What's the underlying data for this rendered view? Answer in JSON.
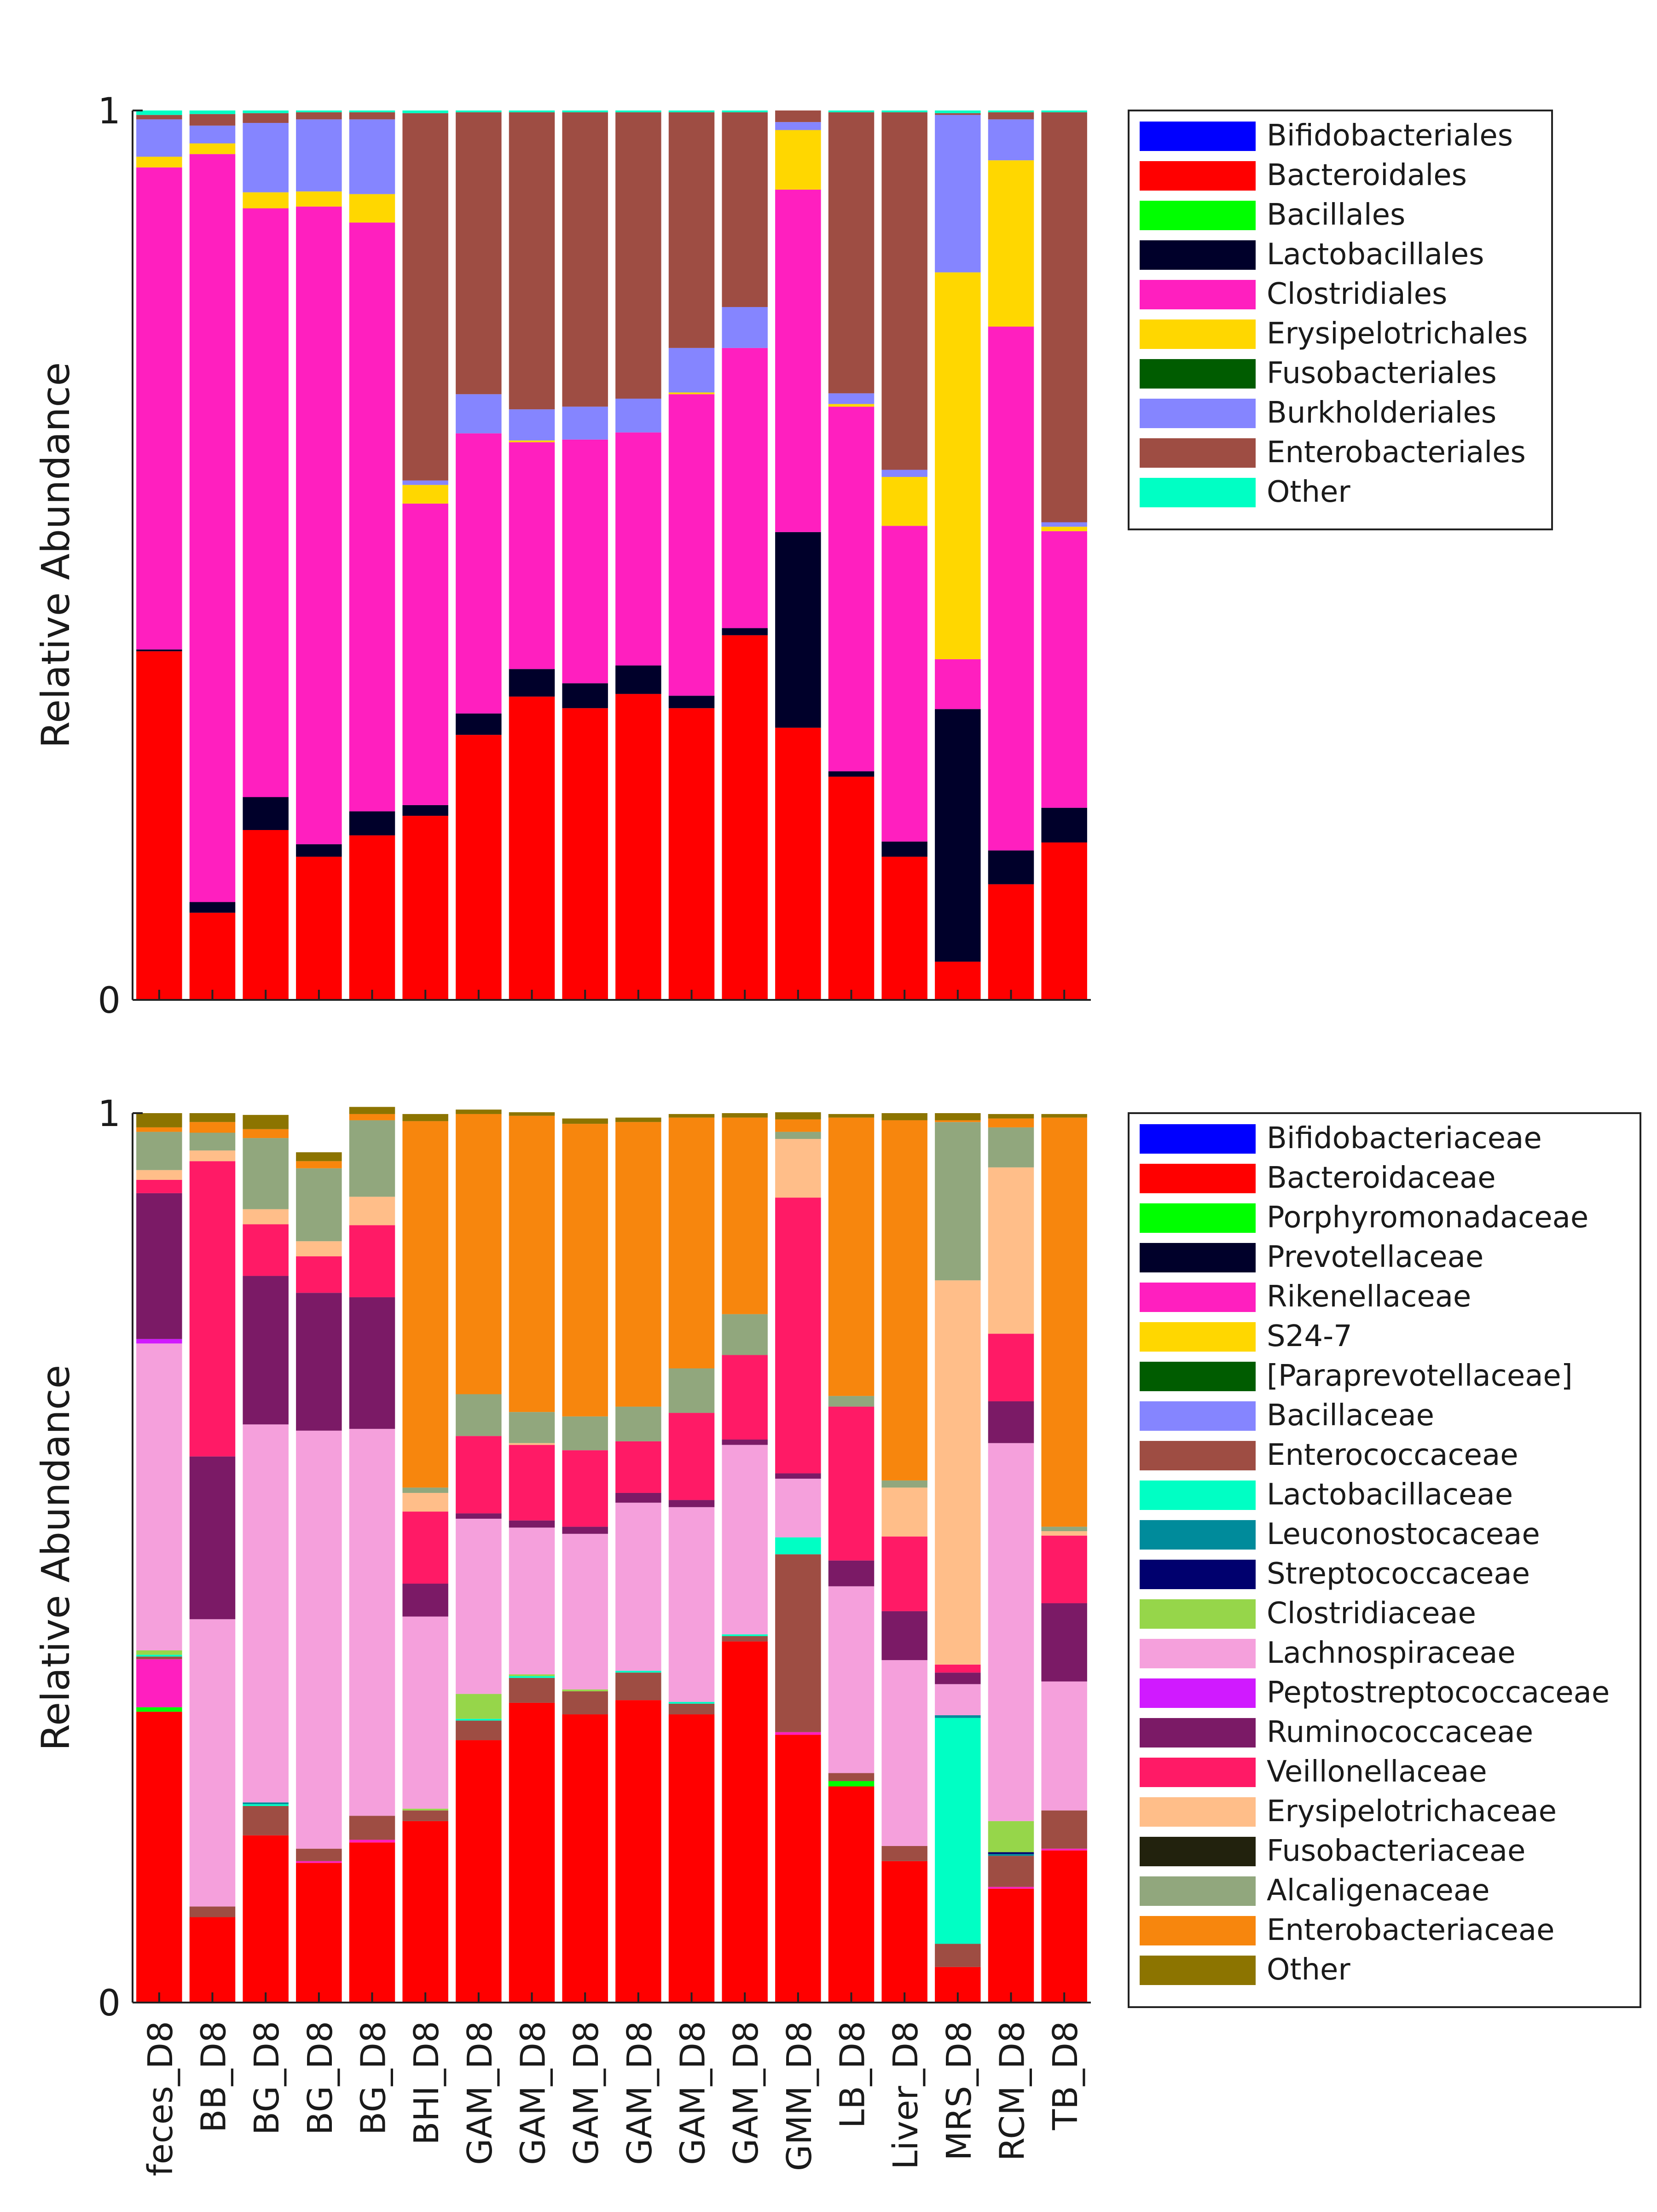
{
  "chart_data": [
    {
      "type": "bar",
      "stacked": true,
      "normalized": true,
      "title": "",
      "xlabel": "",
      "ylabel": "Relative Abundance",
      "ylim": [
        0,
        1
      ],
      "yticks": [
        "0",
        "1"
      ],
      "legend_position": "right",
      "categories": [
        "feces_D8",
        "BB_D8",
        "BG_D8",
        "BG_D8",
        "BG_D8",
        "BHI_D8",
        "GAM_D8",
        "GAM_D8",
        "GAM_D8",
        "GAM_D8",
        "GAM_D8",
        "GAM_D8",
        "GMM_D8",
        "LB_D8",
        "Liver_D8",
        "MRS_D8",
        "RCM_D8",
        "TB_D8"
      ],
      "series": [
        {
          "name": "Bifidobacteriales",
          "color": "#0000ff",
          "values": [
            0,
            0,
            0,
            0,
            0,
            0,
            0,
            0,
            0,
            0,
            0,
            0,
            0,
            0,
            0,
            0,
            0,
            0
          ]
        },
        {
          "name": "Bacteroidales",
          "color": "#ff0000",
          "values": [
            0.392,
            0.098,
            0.191,
            0.161,
            0.185,
            0.207,
            0.298,
            0.341,
            0.328,
            0.344,
            0.328,
            0.41,
            0.306,
            0.251,
            0.161,
            0.043,
            0.13,
            0.177
          ]
        },
        {
          "name": "Bacillales",
          "color": "#00ff00",
          "values": [
            0,
            0,
            0,
            0,
            0,
            0,
            0,
            0,
            0,
            0,
            0,
            0,
            0,
            0,
            0,
            0,
            0,
            0
          ]
        },
        {
          "name": "Lactobacillales",
          "color": "#00002a",
          "values": [
            0.002,
            0.012,
            0.037,
            0.014,
            0.027,
            0.012,
            0.024,
            0.031,
            0.028,
            0.032,
            0.014,
            0.008,
            0.22,
            0.006,
            0.017,
            0.284,
            0.038,
            0.039
          ]
        },
        {
          "name": "Clostridiales",
          "color": "#ff1fbf",
          "values": [
            0.542,
            0.841,
            0.662,
            0.717,
            0.662,
            0.339,
            0.315,
            0.255,
            0.274,
            0.262,
            0.339,
            0.315,
            0.385,
            0.41,
            0.355,
            0.056,
            0.589,
            0.311
          ]
        },
        {
          "name": "Erysipelotrichales",
          "color": "#ffd700",
          "values": [
            0.012,
            0.012,
            0.018,
            0.017,
            0.032,
            0.021,
            0,
            0.002,
            0,
            0,
            0.002,
            0,
            0.067,
            0.003,
            0.055,
            0.435,
            0.187,
            0.005
          ]
        },
        {
          "name": "Fusobacteriales",
          "color": "#005c00",
          "values": [
            0,
            0,
            0,
            0,
            0,
            0,
            0,
            0,
            0,
            0,
            0,
            0,
            0,
            0,
            0,
            0,
            0,
            0
          ]
        },
        {
          "name": "Burkholderiales",
          "color": "#8585ff",
          "values": [
            0.042,
            0.02,
            0.078,
            0.081,
            0.084,
            0.005,
            0.044,
            0.035,
            0.037,
            0.038,
            0.05,
            0.046,
            0.009,
            0.012,
            0.008,
            0.177,
            0.046,
            0.005
          ]
        },
        {
          "name": "Enterobacteriales",
          "color": "#9e4d43",
          "values": [
            0.005,
            0.013,
            0.011,
            0.008,
            0.008,
            0.413,
            0.317,
            0.334,
            0.331,
            0.322,
            0.265,
            0.219,
            0.013,
            0.316,
            0.402,
            0.002,
            0.008,
            0.461
          ]
        },
        {
          "name": "Other",
          "color": "#00ffc4",
          "values": [
            0.005,
            0.004,
            0.003,
            0.002,
            0.002,
            0.003,
            0.002,
            0.002,
            0.002,
            0.002,
            0.002,
            0.002,
            0,
            0.002,
            0.002,
            0.003,
            0.002,
            0.002
          ]
        }
      ]
    },
    {
      "type": "bar",
      "stacked": true,
      "normalized": true,
      "title": "",
      "xlabel": "",
      "ylabel": "Relative Abundance",
      "ylim": [
        0,
        1
      ],
      "yticks": [
        "0",
        "1"
      ],
      "legend_position": "right",
      "categories": [
        "feces_D8",
        "BB_D8",
        "BG_D8",
        "BG_D8",
        "BG_D8",
        "BHI_D8",
        "GAM_D8",
        "GAM_D8",
        "GAM_D8",
        "GAM_D8",
        "GAM_D8",
        "GAM_D8",
        "GMM_D8",
        "LB_D8",
        "Liver_D8",
        "MRS_D8",
        "RCM_D8",
        "TB_D8"
      ],
      "series": [
        {
          "name": "Bifidobacteriaceae",
          "color": "#0000ff",
          "values": [
            0,
            0,
            0,
            0,
            0,
            0,
            0,
            0,
            0,
            0,
            0,
            0,
            0,
            0,
            0,
            0,
            0,
            0
          ]
        },
        {
          "name": "Bacteroidaceae",
          "color": "#ff0000",
          "values": [
            0.327,
            0.096,
            0.188,
            0.157,
            0.18,
            0.204,
            0.295,
            0.337,
            0.324,
            0.34,
            0.324,
            0.406,
            0.301,
            0.243,
            0.159,
            0.04,
            0.128,
            0.171
          ]
        },
        {
          "name": "Porphyromonadaceae",
          "color": "#00ff00",
          "values": [
            0.005,
            0,
            0,
            0,
            0,
            0,
            0,
            0,
            0,
            0,
            0,
            0,
            0,
            0.006,
            0,
            0,
            0,
            0
          ]
        },
        {
          "name": "Prevotellaceae",
          "color": "#00002a",
          "values": [
            0,
            0,
            0,
            0,
            0,
            0,
            0,
            0,
            0,
            0,
            0,
            0,
            0,
            0,
            0,
            0,
            0,
            0
          ]
        },
        {
          "name": "Rikenellaceae",
          "color": "#ff1fbf",
          "values": [
            0.054,
            0,
            0,
            0.002,
            0.003,
            0,
            0,
            0,
            0,
            0,
            0,
            0,
            0.003,
            0,
            0,
            0,
            0.002,
            0.002
          ]
        },
        {
          "name": "S24-7",
          "color": "#ffd700",
          "values": [
            0,
            0,
            0,
            0,
            0,
            0,
            0,
            0,
            0,
            0,
            0,
            0,
            0,
            0,
            0,
            0,
            0,
            0
          ]
        },
        {
          "name": "[Paraprevotellaceae]",
          "color": "#005c00",
          "values": [
            0,
            0,
            0,
            0,
            0,
            0,
            0,
            0,
            0,
            0,
            0,
            0,
            0,
            0,
            0,
            0,
            0,
            0
          ]
        },
        {
          "name": "Bacillaceae",
          "color": "#8585ff",
          "values": [
            0,
            0,
            0,
            0,
            0,
            0,
            0,
            0,
            0,
            0,
            0,
            0,
            0,
            0,
            0,
            0,
            0,
            0
          ]
        },
        {
          "name": "Enterococcaceae",
          "color": "#9e4d43",
          "values": [
            0.003,
            0.012,
            0.033,
            0.014,
            0.027,
            0.012,
            0.022,
            0.028,
            0.026,
            0.031,
            0.012,
            0.006,
            0.2,
            0.009,
            0.017,
            0.026,
            0.035,
            0.043
          ]
        },
        {
          "name": "Lactobacillaceae",
          "color": "#00ffc4",
          "values": [
            0.002,
            0,
            0.002,
            0,
            0,
            0,
            0.002,
            0.002,
            0,
            0.002,
            0.002,
            0.002,
            0.019,
            0,
            0,
            0.254,
            0,
            0
          ]
        },
        {
          "name": "Leuconostocaceae",
          "color": "#008b9b",
          "values": [
            0,
            0,
            0.002,
            0,
            0,
            0,
            0,
            0,
            0,
            0,
            0,
            0,
            0,
            0,
            0,
            0.003,
            0.002,
            0
          ]
        },
        {
          "name": "Streptococcaceae",
          "color": "#00006e",
          "values": [
            0,
            0,
            0,
            0,
            0,
            0,
            0,
            0,
            0,
            0,
            0,
            0,
            0,
            0,
            0,
            0,
            0.002,
            0
          ]
        },
        {
          "name": "Clostridiaceae",
          "color": "#96d64a",
          "values": [
            0.005,
            0,
            0,
            0,
            0,
            0.002,
            0.028,
            0.002,
            0.002,
            0,
            0,
            0,
            0,
            0,
            0,
            0,
            0.035,
            0
          ]
        },
        {
          "name": "Lachnospiraceae",
          "color": "#f5a0dc",
          "values": [
            0.345,
            0.323,
            0.425,
            0.47,
            0.435,
            0.216,
            0.197,
            0.165,
            0.175,
            0.189,
            0.219,
            0.213,
            0.066,
            0.21,
            0.209,
            0.035,
            0.425,
            0.145
          ]
        },
        {
          "name": "Peptostreptococcaceae",
          "color": "#d01aff",
          "values": [
            0.005,
            0,
            0,
            0,
            0,
            0,
            0,
            0,
            0,
            0,
            0,
            0,
            0,
            0,
            0,
            0,
            0,
            0
          ]
        },
        {
          "name": "Ruminococcaceae",
          "color": "#7b1a66",
          "values": [
            0.164,
            0.183,
            0.167,
            0.155,
            0.148,
            0.037,
            0.006,
            0.008,
            0.008,
            0.011,
            0.008,
            0.006,
            0.006,
            0.029,
            0.055,
            0.013,
            0.047,
            0.088
          ]
        },
        {
          "name": "Veillonellaceae",
          "color": "#ff1a66",
          "values": [
            0.015,
            0.332,
            0.058,
            0.041,
            0.081,
            0.081,
            0.087,
            0.085,
            0.086,
            0.058,
            0.098,
            0.095,
            0.31,
            0.173,
            0.084,
            0.009,
            0.076,
            0.076
          ]
        },
        {
          "name": "Erysipelotrichaceae",
          "color": "#ffbe89",
          "values": [
            0.011,
            0.012,
            0.017,
            0.017,
            0.032,
            0.021,
            0,
            0.002,
            0,
            0,
            0,
            0,
            0.066,
            0,
            0.055,
            0.432,
            0.187,
            0.005
          ]
        },
        {
          "name": "Fusobacteriaceae",
          "color": "#22220d",
          "values": [
            0,
            0,
            0,
            0,
            0,
            0,
            0,
            0,
            0,
            0,
            0,
            0,
            0,
            0,
            0,
            0,
            0,
            0
          ]
        },
        {
          "name": "Alcaligenaceae",
          "color": "#91a77d",
          "values": [
            0.043,
            0.02,
            0.08,
            0.082,
            0.086,
            0.006,
            0.047,
            0.035,
            0.038,
            0.039,
            0.05,
            0.046,
            0.008,
            0.012,
            0.008,
            0.178,
            0.045,
            0.005
          ]
        },
        {
          "name": "Enterobacteriaceae",
          "color": "#f7860d",
          "values": [
            0.005,
            0.012,
            0.01,
            0.008,
            0.007,
            0.412,
            0.315,
            0.333,
            0.329,
            0.32,
            0.282,
            0.221,
            0.014,
            0.313,
            0.405,
            0.002,
            0.01,
            0.46
          ]
        },
        {
          "name": "Other",
          "color": "#8c7400",
          "values": [
            0.016,
            0.01,
            0.016,
            0.01,
            0.008,
            0.008,
            0.005,
            0.004,
            0.006,
            0.005,
            0.004,
            0.005,
            0.008,
            0.004,
            0.008,
            0.008,
            0.005,
            0.004
          ]
        }
      ]
    }
  ]
}
